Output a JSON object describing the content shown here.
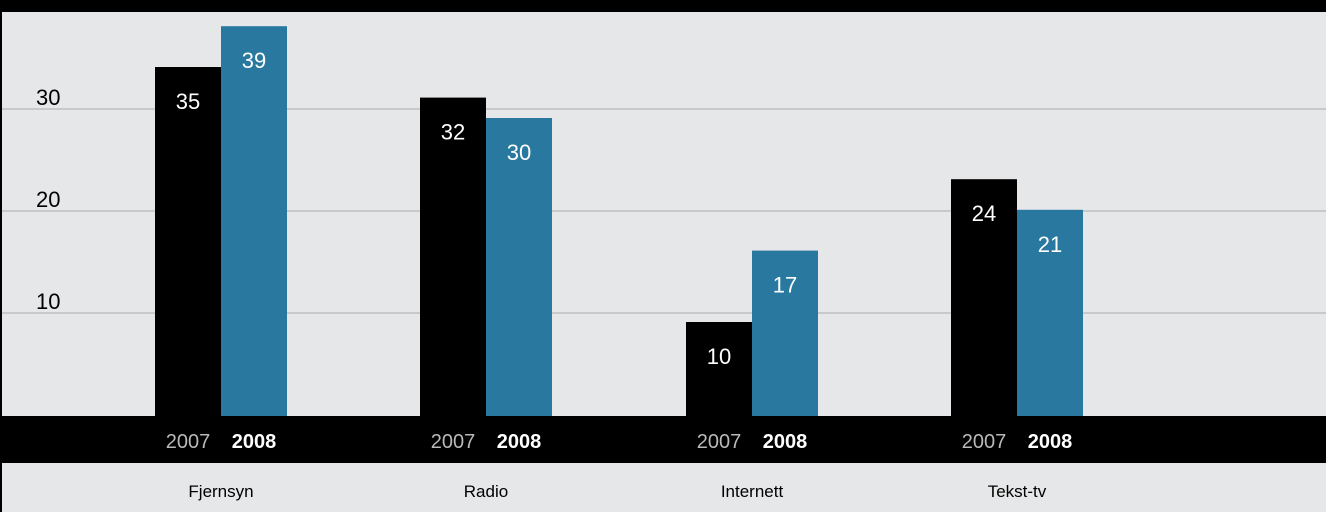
{
  "chart_data": {
    "type": "bar",
    "title": "",
    "xlabel": "",
    "ylabel": "",
    "ylim": [
      0,
      40
    ],
    "yticks": [
      10,
      20,
      30,
      40
    ],
    "grid": true,
    "categories": [
      "Fjernsyn",
      "Radio",
      "Internett",
      "Tekst-tv"
    ],
    "series": [
      {
        "name": "2007",
        "values": [
          35,
          32,
          10,
          24
        ],
        "color": "#000000"
      },
      {
        "name": "2008",
        "values": [
          39,
          30,
          17,
          21
        ],
        "color": "#2878a0"
      }
    ]
  },
  "colors": {
    "background": "#e6e7e8",
    "frame": "#000000",
    "gridline": "#c8c9cb",
    "series_2007": "#000000",
    "series_2008": "#2878a0"
  }
}
